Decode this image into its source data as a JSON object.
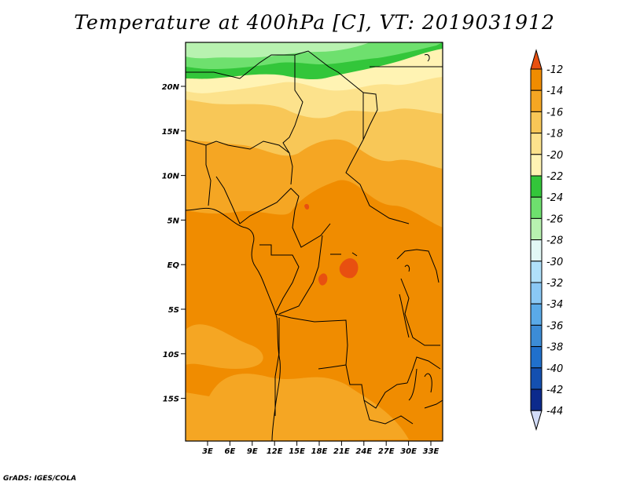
{
  "title": "Temperature at 400hPa [C], VT: 2019031912",
  "credit": "GrADS: IGES/COLA",
  "map": {
    "lat_labels": [
      "20N",
      "15N",
      "10N",
      "5N",
      "EQ",
      "5S",
      "10S",
      "15S"
    ],
    "lon_labels": [
      "3E",
      "6E",
      "9E",
      "12E",
      "15E",
      "18E",
      "21E",
      "24E",
      "27E",
      "30E",
      "33E"
    ]
  },
  "colorbar": {
    "labels": [
      "-12",
      "-14",
      "-16",
      "-18",
      "-20",
      "-22",
      "-24",
      "-26",
      "-28",
      "-30",
      "-32",
      "-34",
      "-36",
      "-38",
      "-40",
      "-42",
      "-44"
    ],
    "colors": [
      "#e85010",
      "#f08c00",
      "#f5a623",
      "#f8c757",
      "#fce28c",
      "#fff3b3",
      "#33c63a",
      "#6ee06e",
      "#b8f2b0",
      "#e2f8f6",
      "#b0e0fa",
      "#8ac8f5",
      "#5aaae8",
      "#3c8cd6",
      "#2070cc",
      "#1450b0",
      "#0c2a8c",
      "#d2dcf8"
    ]
  }
}
